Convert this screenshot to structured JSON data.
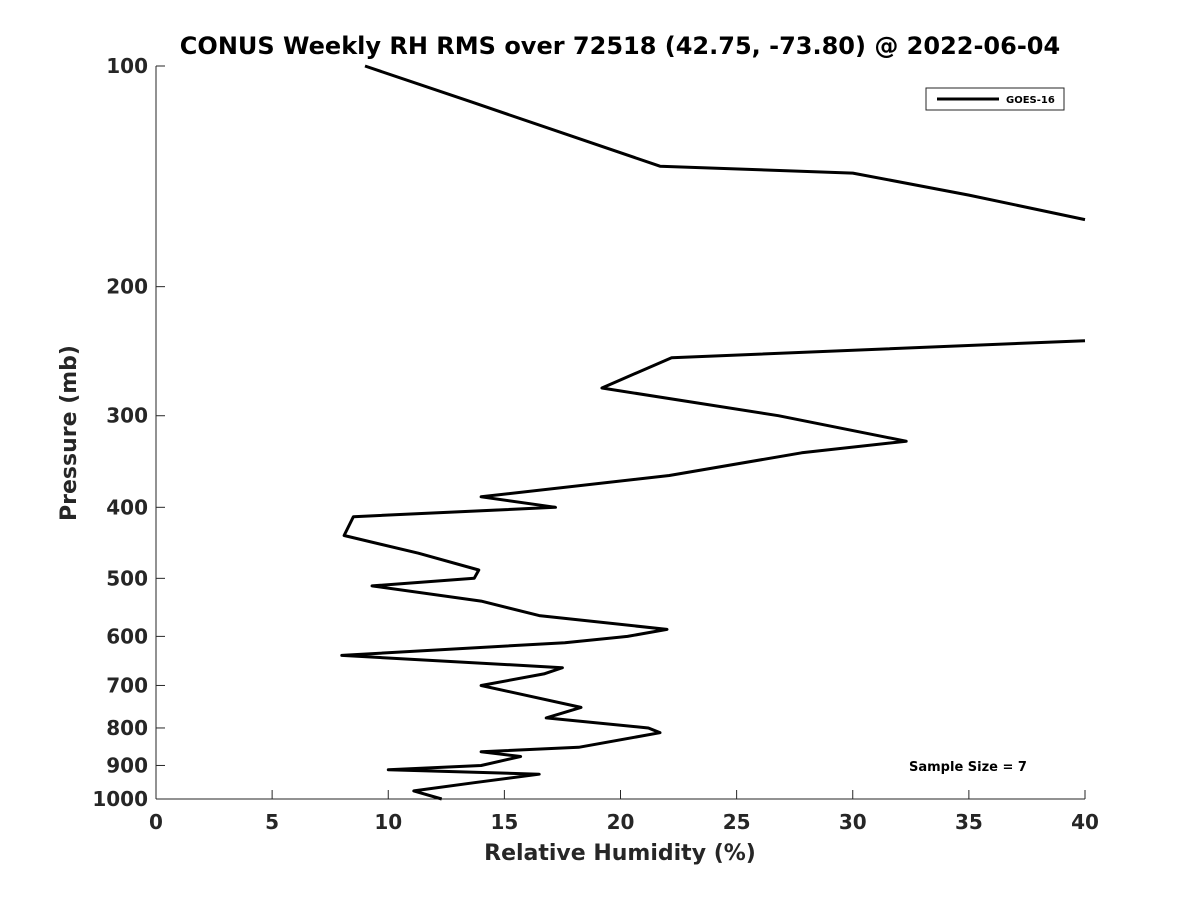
{
  "chart_data": {
    "type": "line",
    "title": "CONUS Weekly RH RMS over 72518 (42.75, -73.80) @ 2022-06-04",
    "xlabel": "Relative Humidity (%)",
    "ylabel": "Pressure (mb)",
    "xlim": [
      0,
      40
    ],
    "ylim": [
      100,
      1000
    ],
    "yscale": "log",
    "yreversed": true,
    "xticks": [
      0,
      5,
      10,
      15,
      20,
      25,
      30,
      35,
      40
    ],
    "yticks": [
      100,
      200,
      300,
      400,
      500,
      600,
      700,
      800,
      900,
      1000
    ],
    "grid": false,
    "legend_position": "top-right",
    "annotation": "Sample Size = 7",
    "series": [
      {
        "name": "GOES-16",
        "color": "#000000",
        "points": [
          {
            "x": 12.3,
            "y": 1000
          },
          {
            "x": 11.1,
            "y": 975
          },
          {
            "x": 13.7,
            "y": 950
          },
          {
            "x": 16.5,
            "y": 925
          },
          {
            "x": 10.0,
            "y": 912
          },
          {
            "x": 14.0,
            "y": 900
          },
          {
            "x": 15.7,
            "y": 875
          },
          {
            "x": 14.0,
            "y": 862
          },
          {
            "x": 18.2,
            "y": 850
          },
          {
            "x": 21.7,
            "y": 812
          },
          {
            "x": 21.2,
            "y": 800
          },
          {
            "x": 16.8,
            "y": 775
          },
          {
            "x": 18.3,
            "y": 750
          },
          {
            "x": 14.0,
            "y": 700
          },
          {
            "x": 16.7,
            "y": 675
          },
          {
            "x": 17.5,
            "y": 662
          },
          {
            "x": 8.0,
            "y": 637
          },
          {
            "x": 17.6,
            "y": 612
          },
          {
            "x": 20.3,
            "y": 600
          },
          {
            "x": 22.0,
            "y": 587
          },
          {
            "x": 16.5,
            "y": 562
          },
          {
            "x": 14.0,
            "y": 537
          },
          {
            "x": 9.3,
            "y": 512
          },
          {
            "x": 13.7,
            "y": 500
          },
          {
            "x": 13.9,
            "y": 487
          },
          {
            "x": 11.3,
            "y": 462
          },
          {
            "x": 8.1,
            "y": 437
          },
          {
            "x": 8.5,
            "y": 412
          },
          {
            "x": 17.2,
            "y": 400
          },
          {
            "x": 14.0,
            "y": 387
          },
          {
            "x": 22.1,
            "y": 362
          },
          {
            "x": 27.8,
            "y": 337
          },
          {
            "x": 32.3,
            "y": 325
          },
          {
            "x": 26.8,
            "y": 300
          },
          {
            "x": 19.2,
            "y": 275
          },
          {
            "x": 22.2,
            "y": 250
          },
          {
            "x": 40.0,
            "y": 237
          },
          {
            "x": null,
            "y": null
          },
          {
            "x": 40.0,
            "y": 162
          },
          {
            "x": 35.0,
            "y": 150
          },
          {
            "x": 30.0,
            "y": 140
          },
          {
            "x": 21.7,
            "y": 137
          },
          {
            "x": 13.6,
            "y": 112
          },
          {
            "x": 9.0,
            "y": 100
          }
        ]
      }
    ]
  }
}
